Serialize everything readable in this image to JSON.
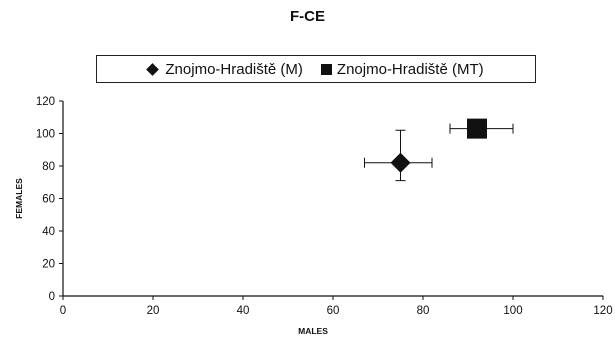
{
  "chart_data": {
    "type": "scatter",
    "title": "F-CE",
    "xlabel": "MALES",
    "ylabel": "FEMALES",
    "xlim": [
      0,
      120
    ],
    "ylim": [
      0,
      120
    ],
    "xticks": [
      "0",
      "20",
      "40",
      "60",
      "80",
      "100",
      "120"
    ],
    "yticks": [
      "0",
      "20",
      "40",
      "60",
      "80",
      "100",
      "120"
    ],
    "grid": false,
    "legend_position": "top",
    "series": [
      {
        "name": "Znojmo-Hradiště (M)",
        "marker": "diamond",
        "color": "#111111",
        "points": [
          {
            "x": 75,
            "y": 82,
            "xerr_low": 67,
            "xerr_high": 82,
            "yerr_low": 71,
            "yerr_high": 102
          }
        ]
      },
      {
        "name": "Znojmo-Hradiště (MT)",
        "marker": "square",
        "color": "#111111",
        "points": [
          {
            "x": 92,
            "y": 103,
            "xerr_low": 86,
            "xerr_high": 100,
            "yerr_low": 103,
            "yerr_high": 103
          }
        ]
      }
    ]
  }
}
